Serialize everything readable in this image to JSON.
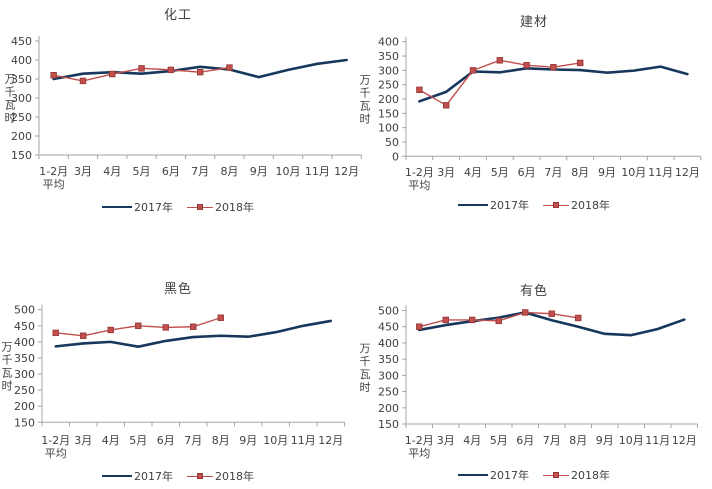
{
  "page": {
    "background": "#ffffff"
  },
  "colors": {
    "series_2017": "#17375D",
    "series_2018": "#C0504D",
    "series_2018_marker_border": "#943634",
    "axis_line": "#A6A6A6",
    "tick_text": "#404040",
    "title_text": "#404040"
  },
  "chart_data": [
    {
      "type": "line",
      "title": "化工",
      "ylabel": "万千瓦时",
      "ylim": [
        150,
        450
      ],
      "ytick_step": 50,
      "grid": false,
      "legend_position": "bottom",
      "categories": [
        "1-2月",
        "3月",
        "4月",
        "5月",
        "6月",
        "7月",
        "8月",
        "9月",
        "10月",
        "11月",
        "12月"
      ],
      "category_sublabels": {
        "0": "平均"
      },
      "series": [
        {
          "name": "2017年",
          "marker": "none",
          "values": [
            350,
            364,
            368,
            364,
            371,
            382,
            375,
            355,
            374,
            390,
            400
          ]
        },
        {
          "name": "2018年",
          "marker": "square",
          "values": [
            360,
            345,
            363,
            378,
            374,
            368,
            380
          ]
        }
      ]
    },
    {
      "type": "line",
      "title": "建材",
      "ylabel": "万千瓦时",
      "ylim": [
        0,
        400
      ],
      "ytick_step": 50,
      "grid": false,
      "legend_position": "bottom",
      "categories": [
        "1-2月",
        "3月",
        "4月",
        "5月",
        "6月",
        "7月",
        "8月",
        "9月",
        "10月",
        "11月",
        "12月"
      ],
      "category_sublabels": {
        "0": "平均"
      },
      "series": [
        {
          "name": "2017年",
          "marker": "none",
          "values": [
            192,
            225,
            296,
            293,
            307,
            303,
            301,
            292,
            299,
            313,
            287
          ]
        },
        {
          "name": "2018年",
          "marker": "square",
          "values": [
            232,
            178,
            300,
            335,
            318,
            311,
            326
          ]
        }
      ]
    },
    {
      "type": "line",
      "title": "黑色",
      "ylabel": "万千瓦时",
      "ylim": [
        150,
        500
      ],
      "ytick_step": 50,
      "grid": false,
      "legend_position": "bottom",
      "categories": [
        "1-2月",
        "3月",
        "4月",
        "5月",
        "6月",
        "7月",
        "8月",
        "9月",
        "10月",
        "11月",
        "12月"
      ],
      "category_sublabels": {
        "0": "平均"
      },
      "series": [
        {
          "name": "2017年",
          "marker": "none",
          "values": [
            386,
            395,
            400,
            385,
            403,
            415,
            419,
            416,
            430,
            450,
            465
          ]
        },
        {
          "name": "2018年",
          "marker": "square",
          "values": [
            428,
            419,
            437,
            450,
            445,
            447,
            475
          ]
        }
      ]
    },
    {
      "type": "line",
      "title": "有色",
      "ylabel": "万千瓦时",
      "ylim": [
        150,
        500
      ],
      "ytick_step": 50,
      "grid": false,
      "legend_position": "bottom",
      "categories": [
        "1-2月",
        "3月",
        "4月",
        "5月",
        "6月",
        "7月",
        "8月",
        "9月",
        "10月",
        "11月",
        "12月"
      ],
      "category_sublabels": {
        "0": "平均"
      },
      "series": [
        {
          "name": "2017年",
          "marker": "none",
          "values": [
            440,
            455,
            467,
            478,
            494,
            470,
            450,
            428,
            424,
            443,
            472
          ]
        },
        {
          "name": "2018年",
          "marker": "square",
          "values": [
            450,
            471,
            471,
            468,
            494,
            490,
            477
          ]
        }
      ]
    }
  ]
}
